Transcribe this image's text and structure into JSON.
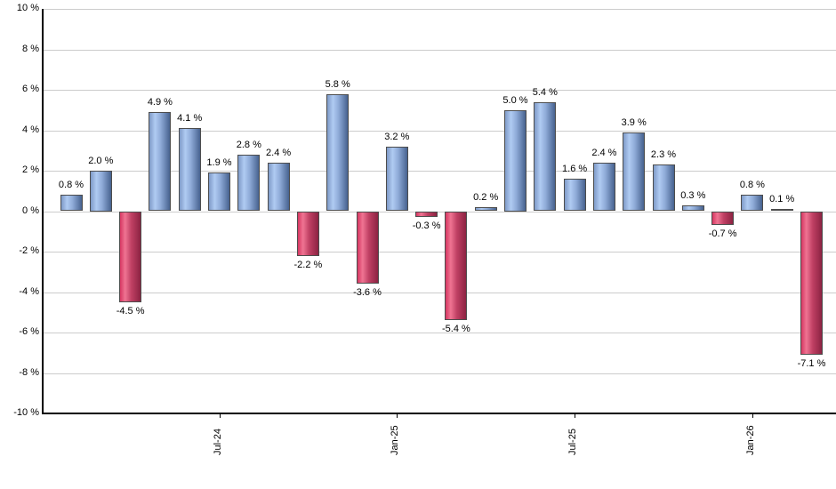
{
  "chart_data": {
    "type": "bar",
    "title": "",
    "xlabel": "",
    "ylabel": "",
    "ylim": [
      -10,
      10
    ],
    "y_tick_step": 2,
    "grid": true,
    "legend_position": "none",
    "y_tick_labels": [
      "10 %",
      "8 %",
      "6 %",
      "4 %",
      "2 %",
      "0 %",
      "-2 %",
      "-4 %",
      "-6 %",
      "-8 %",
      "-10 %"
    ],
    "x_ticks": [
      {
        "bar_index": 5,
        "label": "Jul-24"
      },
      {
        "bar_index": 11,
        "label": "Jan-25"
      },
      {
        "bar_index": 17,
        "label": "Jul-25"
      },
      {
        "bar_index": 23,
        "label": "Jan-26"
      }
    ],
    "values": [
      0.8,
      2.0,
      -4.5,
      4.9,
      4.1,
      1.9,
      2.8,
      2.4,
      -2.2,
      5.8,
      -3.6,
      3.2,
      -0.3,
      -5.4,
      0.2,
      5.0,
      5.4,
      1.6,
      2.4,
      3.9,
      2.3,
      0.3,
      -0.7,
      0.8,
      0.1,
      -7.1
    ],
    "bar_labels": [
      "0.8 %",
      "2.0 %",
      "-4.5 %",
      "4.9 %",
      "4.1 %",
      "1.9 %",
      "2.8 %",
      "2.4 %",
      "-2.2 %",
      "5.8 %",
      "-3.6 %",
      "3.2 %",
      "-0.3 %",
      "-5.4 %",
      "0.2 %",
      "5.0 %",
      "5.4 %",
      "1.6 %",
      "2.4 %",
      "3.9 %",
      "2.3 %",
      "0.3 %",
      "-0.7 %",
      "0.8 %",
      "0.1 %",
      "-7.1 %"
    ],
    "colors": {
      "positive_bar_gradient": [
        "#7e9ac8",
        "#b0cbf2",
        "#8fabd8",
        "#47628f"
      ],
      "negative_bar_gradient": [
        "#d63762",
        "#ef7492",
        "#c04064",
        "#8c2342"
      ],
      "bar_border": "#4d4d4d",
      "gridline": "#cccccc",
      "axis": "#000000",
      "label_text": "#000000"
    }
  }
}
